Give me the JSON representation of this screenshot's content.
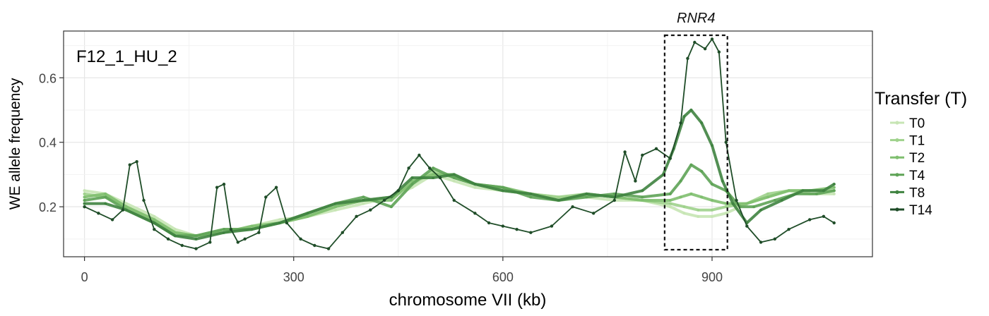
{
  "chart_data": {
    "type": "line",
    "title": "",
    "panel_label": "F12_1_HU_2",
    "xlabel": "chromosome VII (kb)",
    "ylabel": "WE allele frequency",
    "xlim": [
      -30,
      1130
    ],
    "ylim": [
      0.045,
      0.745
    ],
    "xticks": [
      0,
      300,
      600,
      900
    ],
    "yticks": [
      0.2,
      0.4,
      0.6
    ],
    "ytick_labels": [
      "0.2",
      "0.4",
      "0.6"
    ],
    "grid": true,
    "legend": {
      "title": "Transfer (T)",
      "placement": "right"
    },
    "annotation": {
      "label": "RNR4",
      "region_x": [
        832,
        922
      ],
      "region_y": [
        0.05,
        0.72
      ]
    },
    "series": [
      {
        "name": "T0",
        "color": "#c7e5b4",
        "x": [
          0,
          30,
          60,
          100,
          130,
          160,
          200,
          240,
          280,
          320,
          360,
          400,
          440,
          470,
          500,
          530,
          560,
          600,
          640,
          680,
          720,
          760,
          800,
          840,
          860,
          880,
          900,
          920,
          950,
          980,
          1010,
          1040,
          1075
        ],
        "y": [
          0.25,
          0.24,
          0.21,
          0.17,
          0.13,
          0.11,
          0.12,
          0.14,
          0.16,
          0.17,
          0.19,
          0.21,
          0.23,
          0.26,
          0.3,
          0.28,
          0.26,
          0.25,
          0.24,
          0.23,
          0.23,
          0.22,
          0.22,
          0.2,
          0.18,
          0.17,
          0.17,
          0.18,
          0.21,
          0.23,
          0.25,
          0.24,
          0.24
        ]
      },
      {
        "name": "T1",
        "color": "#9fd28c",
        "x": [
          0,
          30,
          60,
          100,
          130,
          160,
          200,
          240,
          280,
          320,
          360,
          400,
          440,
          470,
          500,
          530,
          560,
          600,
          640,
          680,
          720,
          760,
          800,
          840,
          860,
          880,
          900,
          920,
          950,
          980,
          1010,
          1040,
          1075
        ],
        "y": [
          0.24,
          0.23,
          0.2,
          0.16,
          0.12,
          0.11,
          0.13,
          0.13,
          0.15,
          0.17,
          0.2,
          0.22,
          0.23,
          0.27,
          0.31,
          0.29,
          0.27,
          0.25,
          0.24,
          0.23,
          0.24,
          0.23,
          0.22,
          0.21,
          0.2,
          0.19,
          0.19,
          0.2,
          0.21,
          0.24,
          0.25,
          0.25,
          0.25
        ]
      },
      {
        "name": "T2",
        "color": "#7fbf6f",
        "x": [
          0,
          30,
          60,
          100,
          130,
          160,
          200,
          240,
          280,
          320,
          360,
          400,
          440,
          470,
          500,
          530,
          560,
          600,
          640,
          680,
          720,
          760,
          800,
          840,
          855,
          870,
          885,
          900,
          920,
          950,
          980,
          1010,
          1040,
          1075
        ],
        "y": [
          0.23,
          0.24,
          0.2,
          0.16,
          0.12,
          0.11,
          0.12,
          0.14,
          0.15,
          0.17,
          0.2,
          0.22,
          0.22,
          0.28,
          0.3,
          0.3,
          0.27,
          0.26,
          0.24,
          0.22,
          0.24,
          0.23,
          0.22,
          0.22,
          0.23,
          0.24,
          0.23,
          0.22,
          0.21,
          0.21,
          0.23,
          0.25,
          0.25,
          0.26
        ]
      },
      {
        "name": "T4",
        "color": "#5ea356",
        "x": [
          0,
          30,
          60,
          100,
          130,
          160,
          200,
          240,
          280,
          320,
          360,
          400,
          440,
          470,
          500,
          530,
          560,
          600,
          640,
          680,
          720,
          760,
          800,
          840,
          855,
          870,
          885,
          900,
          920,
          940,
          960,
          990,
          1020,
          1050,
          1075
        ],
        "y": [
          0.22,
          0.23,
          0.19,
          0.15,
          0.11,
          0.11,
          0.13,
          0.13,
          0.15,
          0.18,
          0.21,
          0.23,
          0.2,
          0.27,
          0.32,
          0.29,
          0.27,
          0.26,
          0.23,
          0.22,
          0.23,
          0.24,
          0.23,
          0.24,
          0.28,
          0.33,
          0.31,
          0.27,
          0.25,
          0.2,
          0.2,
          0.22,
          0.24,
          0.24,
          0.25
        ]
      },
      {
        "name": "T8",
        "color": "#3f8340",
        "x": [
          0,
          30,
          60,
          100,
          130,
          160,
          200,
          240,
          280,
          320,
          360,
          400,
          440,
          470,
          500,
          530,
          560,
          600,
          640,
          680,
          720,
          760,
          800,
          830,
          845,
          860,
          870,
          885,
          900,
          915,
          930,
          950,
          970,
          1000,
          1030,
          1060,
          1075
        ],
        "y": [
          0.21,
          0.21,
          0.19,
          0.15,
          0.11,
          0.1,
          0.12,
          0.13,
          0.15,
          0.18,
          0.21,
          0.22,
          0.23,
          0.29,
          0.29,
          0.3,
          0.27,
          0.25,
          0.24,
          0.22,
          0.24,
          0.23,
          0.25,
          0.3,
          0.38,
          0.48,
          0.5,
          0.46,
          0.39,
          0.28,
          0.21,
          0.15,
          0.19,
          0.22,
          0.25,
          0.25,
          0.27
        ]
      },
      {
        "name": "T14",
        "color": "#1f4d28",
        "x": [
          0,
          20,
          40,
          55,
          65,
          75,
          85,
          100,
          120,
          140,
          160,
          180,
          190,
          200,
          210,
          220,
          230,
          250,
          260,
          275,
          290,
          310,
          330,
          350,
          370,
          390,
          410,
          430,
          450,
          465,
          480,
          495,
          510,
          530,
          560,
          580,
          600,
          620,
          640,
          670,
          700,
          730,
          760,
          775,
          790,
          800,
          820,
          840,
          855,
          865,
          875,
          890,
          900,
          910,
          920,
          935,
          950,
          970,
          990,
          1010,
          1040,
          1060,
          1075
        ],
        "y": [
          0.2,
          0.18,
          0.16,
          0.19,
          0.33,
          0.34,
          0.22,
          0.13,
          0.1,
          0.08,
          0.07,
          0.09,
          0.26,
          0.27,
          0.13,
          0.09,
          0.1,
          0.12,
          0.23,
          0.26,
          0.15,
          0.1,
          0.08,
          0.07,
          0.12,
          0.17,
          0.19,
          0.22,
          0.25,
          0.32,
          0.36,
          0.32,
          0.29,
          0.22,
          0.18,
          0.15,
          0.14,
          0.13,
          0.12,
          0.14,
          0.2,
          0.18,
          0.22,
          0.37,
          0.28,
          0.36,
          0.38,
          0.35,
          0.46,
          0.66,
          0.71,
          0.69,
          0.72,
          0.68,
          0.4,
          0.22,
          0.14,
          0.09,
          0.1,
          0.13,
          0.16,
          0.17,
          0.15
        ]
      }
    ]
  }
}
